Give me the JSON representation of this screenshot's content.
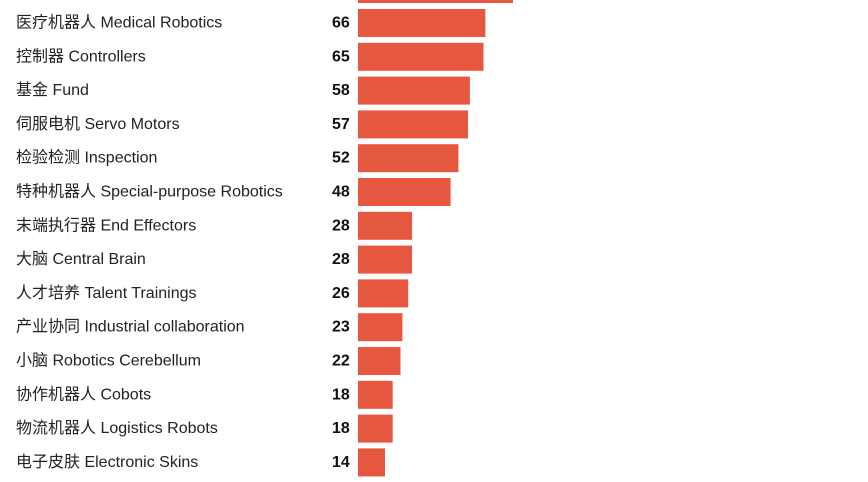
{
  "colors": {
    "bar": "#e5573f",
    "text": "#222222",
    "value": "#111111",
    "background": "#ffffff"
  },
  "chart_data": {
    "type": "bar",
    "orientation": "horizontal",
    "categories": [
      "医疗机器人 Medical Robotics",
      "控制器 Controllers",
      "基金 Fund",
      "伺服电机 Servo Motors",
      "检验检测 Inspection",
      "特种机器人 Special-purpose Robotics",
      "末端执行器 End Effectors",
      "大脑 Central Brain",
      "人才培养 Talent Trainings",
      "产业协同 Industrial collaboration",
      "小脑 Robotics Cerebellum",
      "协作机器人 Cobots",
      "物流机器人 Logistics Robots",
      "电子皮肤 Electronic Skins"
    ],
    "values": [
      66,
      65,
      58,
      57,
      52,
      48,
      28,
      28,
      26,
      23,
      22,
      18,
      18,
      14
    ],
    "data_labels": true,
    "grid": false,
    "legend": "none"
  }
}
